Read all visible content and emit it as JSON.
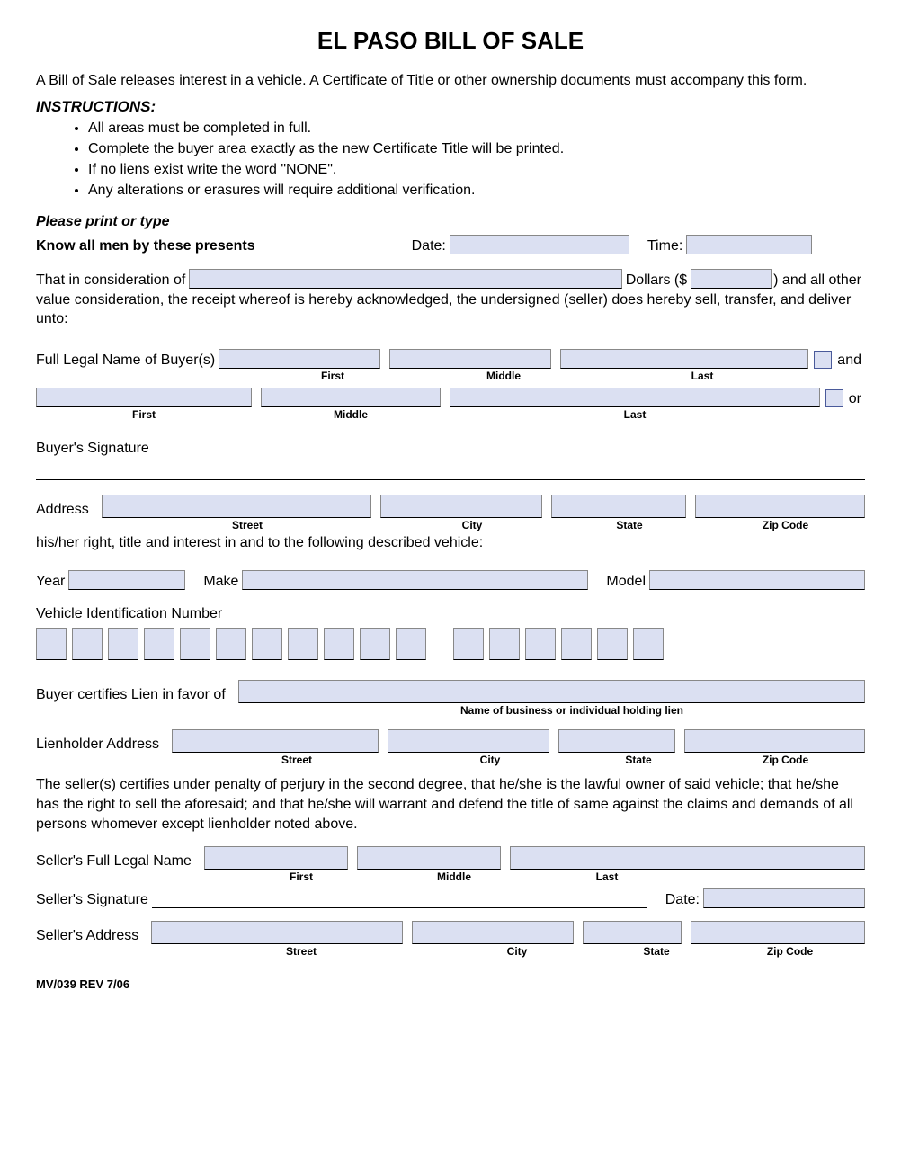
{
  "title": "EL PASO BILL OF SALE",
  "intro": "A Bill of Sale releases interest in a vehicle.  A Certificate of Title or other ownership documents must accompany this form.",
  "instructions_header": "INSTRUCTIONS:",
  "instructions": [
    "All areas must be completed in full.",
    "Complete the buyer area exactly as the new Certificate Title will be printed.",
    "If no liens exist write the word \"NONE\".",
    "Any alterations or erasures will require additional verification."
  ],
  "print_type": "Please print or type",
  "know_all": "Know all men by these presents",
  "date_label": "Date:",
  "time_label": "Time:",
  "consideration": {
    "prefix": "That in consideration of",
    "dollars": "Dollars ($",
    "closing": ") and all other",
    "rest": "value consideration, the receipt whereof is hereby acknowledged, the undersigned (seller) does hereby sell, transfer, and deliver unto:"
  },
  "buyer": {
    "name_label": "Full Legal Name of Buyer(s)",
    "and": "and",
    "or": "or",
    "first": "First",
    "middle": "Middle",
    "last": "Last",
    "signature": "Buyer's Signature",
    "address": "Address",
    "street": "Street",
    "city": "City",
    "state": "State",
    "zip": "Zip Code"
  },
  "vehicle": {
    "intro": "his/her right, title and interest in and to the following described vehicle:",
    "year": "Year",
    "make": "Make",
    "model": "Model",
    "vin": "Vehicle Identification Number",
    "vin_box_count": 17
  },
  "lien": {
    "certify": "Buyer certifies Lien in favor of",
    "holder_caption": "Name of business or individual holding lien",
    "address_label": "Lienholder Address",
    "street": "Street",
    "city": "City",
    "state": "State",
    "zip": "Zip Code"
  },
  "seller_cert": "The seller(s) certifies under penalty of perjury in the second degree, that he/she is the lawful owner of said vehicle; that he/she has the right to sell the aforesaid; and that he/she will warrant and defend the title of same against the claims and demands of all persons whomever except lienholder noted above.",
  "seller": {
    "name_label": "Seller's Full Legal Name",
    "first": "First",
    "middle": "Middle",
    "last": "Last",
    "signature": "Seller's Signature",
    "date": "Date:",
    "address_label": "Seller's Address",
    "street": "Street",
    "city": "City",
    "state": "State",
    "zip": "Zip Code"
  },
  "form_rev": "MV/039 REV 7/06",
  "colors": {
    "fill_bg": "#dbe0f2",
    "border": "#888888",
    "underline": "#000000"
  }
}
